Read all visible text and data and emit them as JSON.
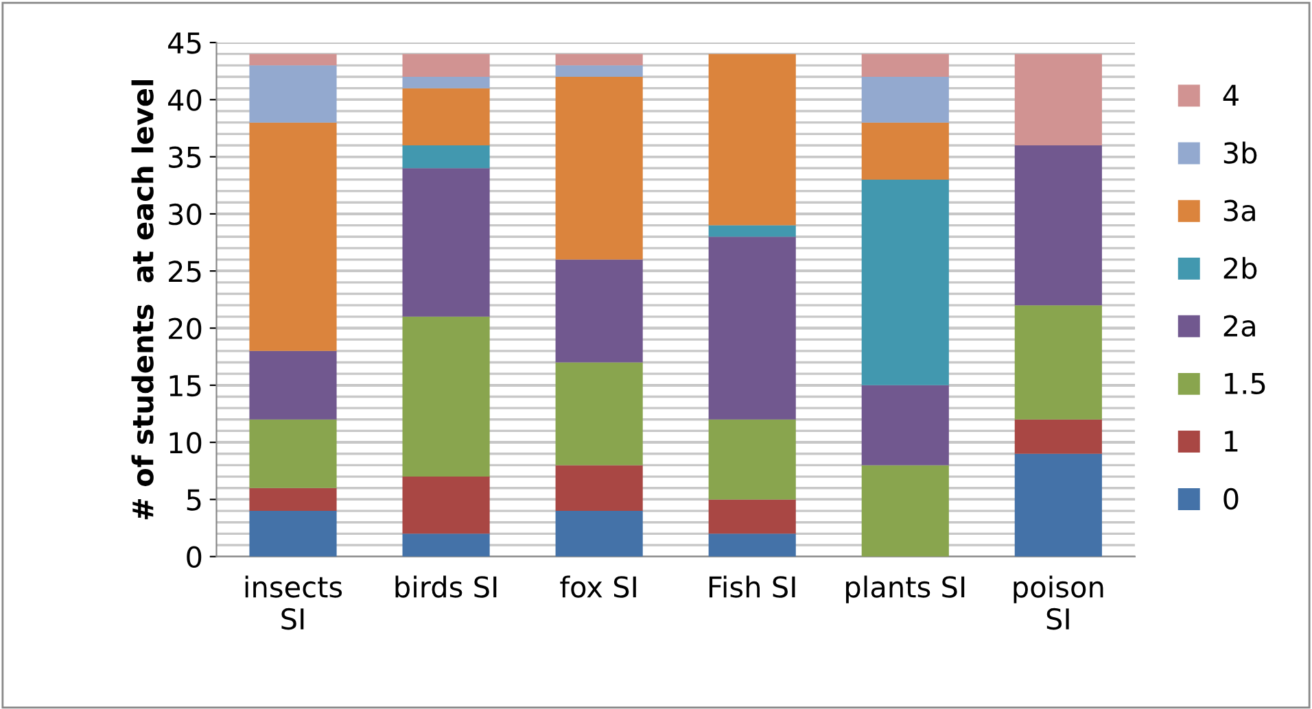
{
  "chart_data": {
    "type": "bar",
    "stacked": true,
    "ylabel": "# of students  at each level",
    "categories": [
      "insects\nSI",
      "birds SI",
      "fox SI",
      "Fish SI",
      "plants SI",
      "poison\nSI"
    ],
    "series": [
      {
        "name": "0",
        "color": "#4472a8",
        "values": [
          4,
          2,
          4,
          2,
          0,
          9
        ]
      },
      {
        "name": "1",
        "color": "#a94744",
        "values": [
          2,
          5,
          4,
          3,
          0,
          3
        ]
      },
      {
        "name": "1.5",
        "color": "#89a54e",
        "values": [
          6,
          14,
          9,
          7,
          8,
          10
        ]
      },
      {
        "name": "2a",
        "color": "#71588f",
        "values": [
          6,
          13,
          9,
          16,
          7,
          14
        ]
      },
      {
        "name": "2b",
        "color": "#4298af",
        "values": [
          0,
          2,
          0,
          1,
          18,
          0
        ]
      },
      {
        "name": "3a",
        "color": "#db843d",
        "values": [
          20,
          5,
          16,
          15,
          5,
          0
        ]
      },
      {
        "name": "3b",
        "color": "#93a9cf",
        "values": [
          5,
          1,
          1,
          0,
          4,
          0
        ]
      },
      {
        "name": "4",
        "color": "#d19392",
        "values": [
          1,
          2,
          1,
          0,
          2,
          8
        ]
      }
    ],
    "ylim": [
      0,
      45
    ],
    "yticks": [
      0,
      5,
      10,
      15,
      20,
      25,
      30,
      35,
      40,
      45
    ],
    "grid": true,
    "legend": "right"
  }
}
